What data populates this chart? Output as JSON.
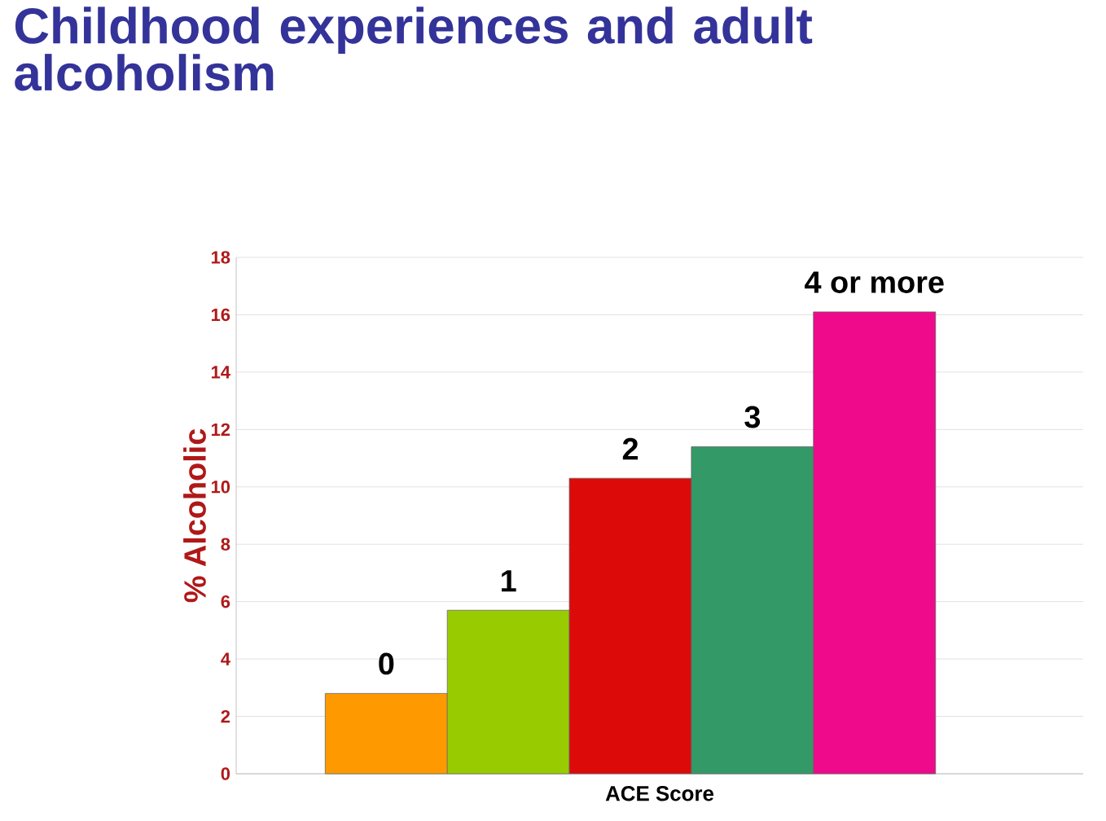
{
  "chart_data": {
    "type": "bar",
    "title": "Childhood experiences and adult alcoholism",
    "xlabel": "ACE Score",
    "ylabel": "%  Alcoholic",
    "categories": [
      "0",
      "1",
      "2",
      "3",
      "4 or more"
    ],
    "values": [
      2.8,
      5.7,
      10.3,
      11.4,
      16.1
    ],
    "colors": [
      "#ff9900",
      "#99cc00",
      "#dd0a0a",
      "#339966",
      "#ee0a8a"
    ],
    "ylim": [
      0,
      18
    ],
    "yticks": [
      0,
      2,
      4,
      6,
      8,
      10,
      12,
      14,
      16,
      18
    ],
    "grid": "y"
  }
}
